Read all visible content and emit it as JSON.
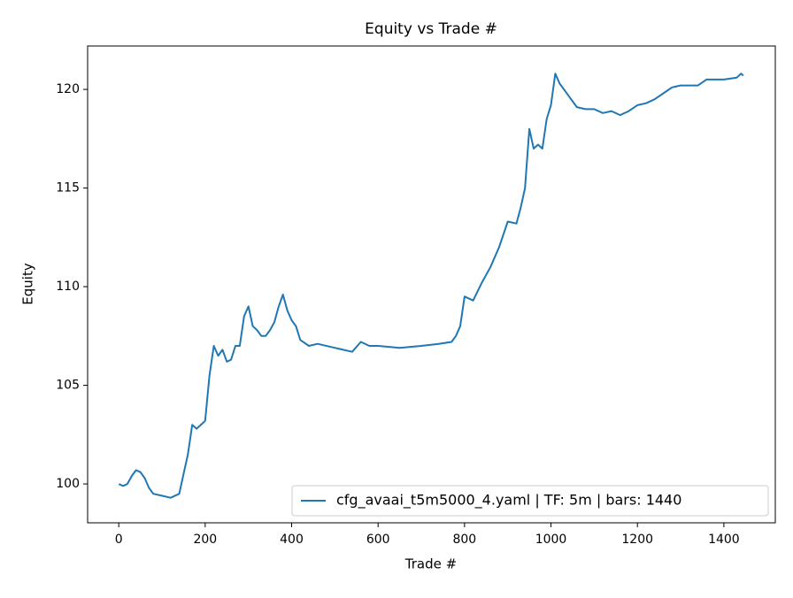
{
  "chart_data": {
    "type": "line",
    "title": "Equity vs Trade #",
    "xlabel": "Trade #",
    "ylabel": "Equity",
    "x": [
      0,
      10,
      20,
      30,
      40,
      50,
      60,
      70,
      80,
      100,
      120,
      140,
      150,
      160,
      170,
      180,
      190,
      200,
      210,
      220,
      230,
      240,
      250,
      260,
      270,
      280,
      290,
      300,
      310,
      320,
      330,
      340,
      350,
      360,
      370,
      380,
      390,
      400,
      410,
      420,
      440,
      460,
      500,
      540,
      560,
      580,
      600,
      650,
      700,
      740,
      770,
      780,
      790,
      800,
      820,
      840,
      860,
      880,
      900,
      920,
      930,
      940,
      950,
      960,
      970,
      980,
      990,
      1000,
      1010,
      1020,
      1040,
      1060,
      1080,
      1100,
      1120,
      1140,
      1160,
      1180,
      1200,
      1220,
      1240,
      1260,
      1280,
      1300,
      1340,
      1360,
      1400,
      1430,
      1440,
      1445
    ],
    "series": [
      {
        "name": "cfg_avaai_t5m5000_4.yaml | TF: 5m | bars: 1440",
        "color": "#1f77b4",
        "values": [
          100.0,
          99.9,
          100.0,
          100.4,
          100.7,
          100.6,
          100.3,
          99.8,
          99.5,
          99.4,
          99.3,
          99.5,
          100.5,
          101.5,
          103.0,
          102.8,
          103.0,
          103.2,
          105.5,
          107.0,
          106.5,
          106.8,
          106.2,
          106.3,
          107.0,
          107.0,
          108.5,
          109.0,
          108.0,
          107.8,
          107.5,
          107.5,
          107.8,
          108.2,
          109.0,
          109.6,
          108.8,
          108.3,
          108.0,
          107.3,
          107.0,
          107.1,
          106.9,
          106.7,
          107.2,
          107.0,
          107.0,
          106.9,
          107.0,
          107.1,
          107.2,
          107.5,
          108.0,
          109.5,
          109.3,
          110.2,
          111.0,
          112.0,
          113.3,
          113.2,
          114.0,
          115.0,
          118.0,
          117.0,
          117.2,
          117.0,
          118.5,
          119.2,
          120.8,
          120.3,
          119.7,
          119.1,
          119.0,
          119.0,
          118.8,
          118.9,
          118.7,
          118.9,
          119.2,
          119.3,
          119.5,
          119.8,
          120.1,
          120.2,
          120.2,
          120.5,
          120.5,
          120.6,
          120.8,
          120.7
        ]
      }
    ],
    "xlim": [
      -72,
      1519
    ],
    "ylim": [
      98.03,
      122.2
    ],
    "xticks": [
      0,
      200,
      400,
      600,
      800,
      1000,
      1200,
      1400
    ],
    "yticks": [
      100,
      105,
      110,
      115,
      120
    ],
    "legend": "lower right"
  }
}
